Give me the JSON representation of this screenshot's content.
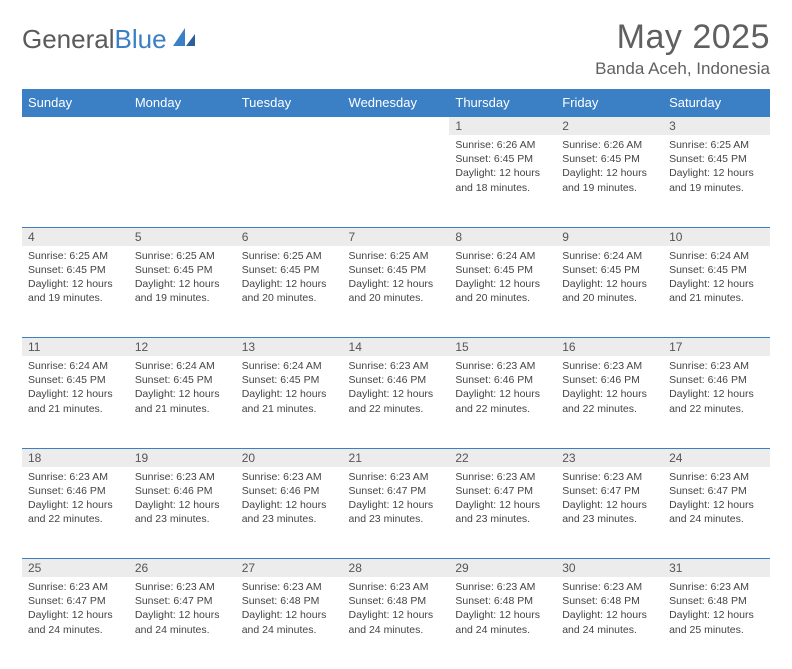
{
  "logo": {
    "text_gray": "General",
    "text_blue": "Blue"
  },
  "title": "May 2025",
  "location": "Banda Aceh, Indonesia",
  "weekdays": [
    "Sunday",
    "Monday",
    "Tuesday",
    "Wednesday",
    "Thursday",
    "Friday",
    "Saturday"
  ],
  "colors": {
    "header_bg": "#3b7fc4",
    "header_text": "#ffffff",
    "daynum_bg": "#ececec",
    "border": "#3b7fc4",
    "body_text": "#444444",
    "title_text": "#606060"
  },
  "typography": {
    "title_fontsize": 34,
    "location_fontsize": 17,
    "weekday_fontsize": 13,
    "daynum_fontsize": 12,
    "cell_fontsize": 10.5
  },
  "weeks": [
    [
      null,
      null,
      null,
      null,
      {
        "day": "1",
        "sunrise": "6:26 AM",
        "sunset": "6:45 PM",
        "daylight": "12 hours and 18 minutes."
      },
      {
        "day": "2",
        "sunrise": "6:26 AM",
        "sunset": "6:45 PM",
        "daylight": "12 hours and 19 minutes."
      },
      {
        "day": "3",
        "sunrise": "6:25 AM",
        "sunset": "6:45 PM",
        "daylight": "12 hours and 19 minutes."
      }
    ],
    [
      {
        "day": "4",
        "sunrise": "6:25 AM",
        "sunset": "6:45 PM",
        "daylight": "12 hours and 19 minutes."
      },
      {
        "day": "5",
        "sunrise": "6:25 AM",
        "sunset": "6:45 PM",
        "daylight": "12 hours and 19 minutes."
      },
      {
        "day": "6",
        "sunrise": "6:25 AM",
        "sunset": "6:45 PM",
        "daylight": "12 hours and 20 minutes."
      },
      {
        "day": "7",
        "sunrise": "6:25 AM",
        "sunset": "6:45 PM",
        "daylight": "12 hours and 20 minutes."
      },
      {
        "day": "8",
        "sunrise": "6:24 AM",
        "sunset": "6:45 PM",
        "daylight": "12 hours and 20 minutes."
      },
      {
        "day": "9",
        "sunrise": "6:24 AM",
        "sunset": "6:45 PM",
        "daylight": "12 hours and 20 minutes."
      },
      {
        "day": "10",
        "sunrise": "6:24 AM",
        "sunset": "6:45 PM",
        "daylight": "12 hours and 21 minutes."
      }
    ],
    [
      {
        "day": "11",
        "sunrise": "6:24 AM",
        "sunset": "6:45 PM",
        "daylight": "12 hours and 21 minutes."
      },
      {
        "day": "12",
        "sunrise": "6:24 AM",
        "sunset": "6:45 PM",
        "daylight": "12 hours and 21 minutes."
      },
      {
        "day": "13",
        "sunrise": "6:24 AM",
        "sunset": "6:45 PM",
        "daylight": "12 hours and 21 minutes."
      },
      {
        "day": "14",
        "sunrise": "6:23 AM",
        "sunset": "6:46 PM",
        "daylight": "12 hours and 22 minutes."
      },
      {
        "day": "15",
        "sunrise": "6:23 AM",
        "sunset": "6:46 PM",
        "daylight": "12 hours and 22 minutes."
      },
      {
        "day": "16",
        "sunrise": "6:23 AM",
        "sunset": "6:46 PM",
        "daylight": "12 hours and 22 minutes."
      },
      {
        "day": "17",
        "sunrise": "6:23 AM",
        "sunset": "6:46 PM",
        "daylight": "12 hours and 22 minutes."
      }
    ],
    [
      {
        "day": "18",
        "sunrise": "6:23 AM",
        "sunset": "6:46 PM",
        "daylight": "12 hours and 22 minutes."
      },
      {
        "day": "19",
        "sunrise": "6:23 AM",
        "sunset": "6:46 PM",
        "daylight": "12 hours and 23 minutes."
      },
      {
        "day": "20",
        "sunrise": "6:23 AM",
        "sunset": "6:46 PM",
        "daylight": "12 hours and 23 minutes."
      },
      {
        "day": "21",
        "sunrise": "6:23 AM",
        "sunset": "6:47 PM",
        "daylight": "12 hours and 23 minutes."
      },
      {
        "day": "22",
        "sunrise": "6:23 AM",
        "sunset": "6:47 PM",
        "daylight": "12 hours and 23 minutes."
      },
      {
        "day": "23",
        "sunrise": "6:23 AM",
        "sunset": "6:47 PM",
        "daylight": "12 hours and 23 minutes."
      },
      {
        "day": "24",
        "sunrise": "6:23 AM",
        "sunset": "6:47 PM",
        "daylight": "12 hours and 24 minutes."
      }
    ],
    [
      {
        "day": "25",
        "sunrise": "6:23 AM",
        "sunset": "6:47 PM",
        "daylight": "12 hours and 24 minutes."
      },
      {
        "day": "26",
        "sunrise": "6:23 AM",
        "sunset": "6:47 PM",
        "daylight": "12 hours and 24 minutes."
      },
      {
        "day": "27",
        "sunrise": "6:23 AM",
        "sunset": "6:48 PM",
        "daylight": "12 hours and 24 minutes."
      },
      {
        "day": "28",
        "sunrise": "6:23 AM",
        "sunset": "6:48 PM",
        "daylight": "12 hours and 24 minutes."
      },
      {
        "day": "29",
        "sunrise": "6:23 AM",
        "sunset": "6:48 PM",
        "daylight": "12 hours and 24 minutes."
      },
      {
        "day": "30",
        "sunrise": "6:23 AM",
        "sunset": "6:48 PM",
        "daylight": "12 hours and 24 minutes."
      },
      {
        "day": "31",
        "sunrise": "6:23 AM",
        "sunset": "6:48 PM",
        "daylight": "12 hours and 25 minutes."
      }
    ]
  ],
  "labels": {
    "sunrise_prefix": "Sunrise: ",
    "sunset_prefix": "Sunset: ",
    "daylight_prefix": "Daylight: "
  }
}
